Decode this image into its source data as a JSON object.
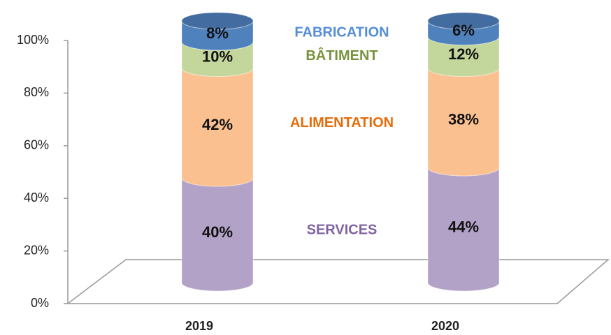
{
  "chart_data": {
    "type": "cylinder_stacked",
    "categories": [
      "2019",
      "2020"
    ],
    "series": [
      {
        "name": "SERVICES",
        "color": "#b3a2c7",
        "label_color": "#8064a2",
        "values": [
          40,
          44
        ],
        "value_labels": [
          "40%",
          "44%"
        ]
      },
      {
        "name": "ALIMENTATION",
        "color": "#fac090",
        "label_color": "#e46c0a",
        "values": [
          42,
          38
        ],
        "value_labels": [
          "42%",
          "38%"
        ]
      },
      {
        "name": "BÂTIMENT",
        "color": "#c3d69b",
        "label_color": "#77933c",
        "values": [
          10,
          12
        ],
        "value_labels": [
          "10%",
          "12%"
        ]
      },
      {
        "name": "FABRICATION",
        "color": "#4f81bd",
        "label_color": "#558ed5",
        "values": [
          8,
          6
        ],
        "value_labels": [
          "8%",
          "6%"
        ]
      }
    ],
    "ylim": [
      0,
      100
    ],
    "yticks": [
      {
        "value": 0,
        "label": "0%"
      },
      {
        "value": 20,
        "label": "20%"
      },
      {
        "value": 40,
        "label": "40%"
      },
      {
        "value": 60,
        "label": "60%"
      },
      {
        "value": 80,
        "label": "80%"
      },
      {
        "value": 100,
        "label": "100%"
      }
    ]
  }
}
